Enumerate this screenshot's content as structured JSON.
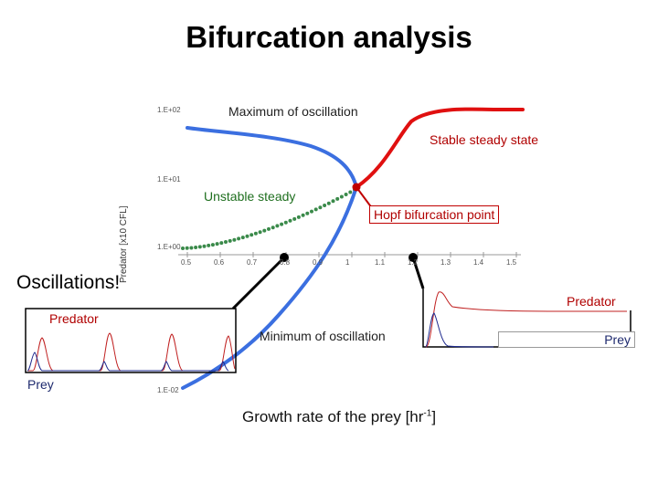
{
  "title": "Bifurcation analysis",
  "labels": {
    "max_osc": "Maximum of oscillation",
    "stable": "Stable steady state",
    "unstable": "Unstable steady",
    "hopf": "Hopf bifurcation point",
    "min_osc": "Minimum of oscillation",
    "oscillations": "Oscillations!",
    "predator_left": "Predator",
    "prey_left": "Prey",
    "predator_right": "Predator",
    "prey_right": "Prey",
    "xlabel": "Growth rate of the prey [hr",
    "xlabel_sup": "-1",
    "xlabel_end": "]",
    "ylabel": "Predator [x10  CFL]"
  },
  "y_ticks": [
    "1.E+02",
    "1.E+01",
    "1.E+00",
    "1.E-02"
  ],
  "x_ticks": [
    "0.5",
    "0.6",
    "0.7",
    "0.8",
    "0.9",
    "1",
    "1.1",
    "1.2",
    "1.3",
    "1.4",
    "1.5"
  ],
  "colors": {
    "max_curve": "#3b6fe0",
    "stable": "#e01010",
    "unstable": "#3a8a4a",
    "predator": "#c02020",
    "prey": "#1e2a8e"
  }
}
